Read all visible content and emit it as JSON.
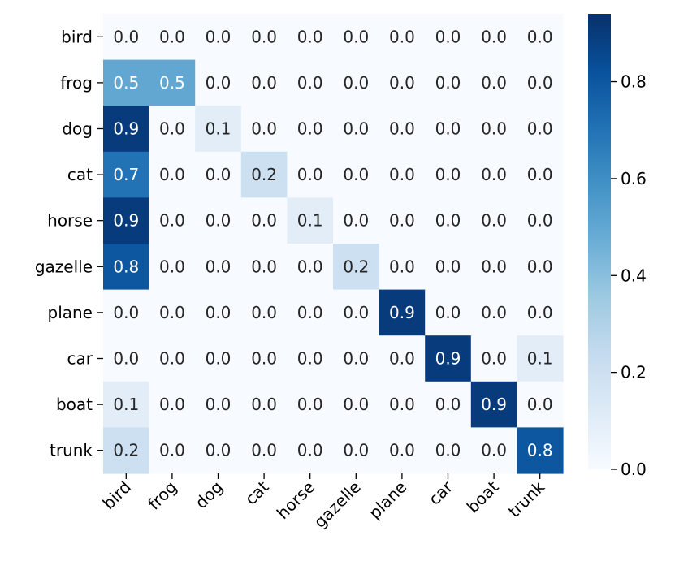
{
  "chart_data": {
    "type": "heatmap",
    "title": "",
    "xlabel": "",
    "ylabel": "",
    "x_categories": [
      "bird",
      "frog",
      "dog",
      "cat",
      "horse",
      "gazelle",
      "plane",
      "car",
      "boat",
      "trunk"
    ],
    "y_categories": [
      "bird",
      "frog",
      "dog",
      "cat",
      "horse",
      "gazelle",
      "plane",
      "car",
      "boat",
      "trunk"
    ],
    "values": [
      [
        0.0,
        0.0,
        0.0,
        0.0,
        0.0,
        0.0,
        0.0,
        0.0,
        0.0,
        0.0
      ],
      [
        0.5,
        0.5,
        0.0,
        0.0,
        0.0,
        0.0,
        0.0,
        0.0,
        0.0,
        0.0
      ],
      [
        0.9,
        0.0,
        0.1,
        0.0,
        0.0,
        0.0,
        0.0,
        0.0,
        0.0,
        0.0
      ],
      [
        0.7,
        0.0,
        0.0,
        0.2,
        0.0,
        0.0,
        0.0,
        0.0,
        0.0,
        0.0
      ],
      [
        0.9,
        0.0,
        0.0,
        0.0,
        0.1,
        0.0,
        0.0,
        0.0,
        0.0,
        0.0
      ],
      [
        0.8,
        0.0,
        0.0,
        0.0,
        0.0,
        0.2,
        0.0,
        0.0,
        0.0,
        0.0
      ],
      [
        0.0,
        0.0,
        0.0,
        0.0,
        0.0,
        0.0,
        0.9,
        0.0,
        0.0,
        0.0
      ],
      [
        0.0,
        0.0,
        0.0,
        0.0,
        0.0,
        0.0,
        0.0,
        0.9,
        0.0,
        0.1
      ],
      [
        0.1,
        0.0,
        0.0,
        0.0,
        0.0,
        0.0,
        0.0,
        0.0,
        0.9,
        0.0
      ],
      [
        0.2,
        0.0,
        0.0,
        0.0,
        0.0,
        0.0,
        0.0,
        0.0,
        0.0,
        0.8
      ]
    ],
    "value_format": "0.0",
    "colormap": "Blues",
    "color_low": "#f7fbff",
    "color_high": "#08306b",
    "colorbar": {
      "range": [
        0.0,
        0.94
      ],
      "ticks": [
        0.0,
        0.2,
        0.4,
        0.6,
        0.8
      ],
      "tick_labels": [
        "0.0",
        "0.2",
        "0.4",
        "0.6",
        "0.8"
      ]
    },
    "text_color_light": "#ffffff",
    "text_color_dark": "#262626",
    "grid": false,
    "legend": "colorbar-right"
  }
}
